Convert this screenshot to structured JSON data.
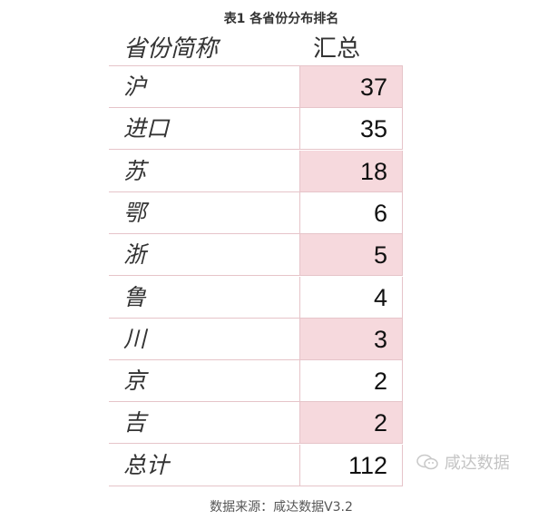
{
  "title": "表1 各省份分布排名",
  "headers": [
    "省份简称",
    "汇总"
  ],
  "rows": [
    {
      "name": "沪",
      "value": "37",
      "shaded": true
    },
    {
      "name": "进口",
      "value": "35",
      "shaded": false
    },
    {
      "name": "苏",
      "value": "18",
      "shaded": true
    },
    {
      "name": "鄂",
      "value": "6",
      "shaded": false
    },
    {
      "name": "浙",
      "value": "5",
      "shaded": true
    },
    {
      "name": "鲁",
      "value": "4",
      "shaded": false
    },
    {
      "name": "川",
      "value": "3",
      "shaded": true
    },
    {
      "name": "京",
      "value": "2",
      "shaded": false
    },
    {
      "name": "吉",
      "value": "2",
      "shaded": true
    },
    {
      "name": "总计",
      "value": "112",
      "shaded": false
    }
  ],
  "colors": {
    "shade": "#f6d9dd",
    "border": "#e6c4c9"
  },
  "watermark": {
    "icon": "wechat-icon",
    "text": "咸达数据"
  },
  "caption": "数据来源：咸达数据V3.2"
}
